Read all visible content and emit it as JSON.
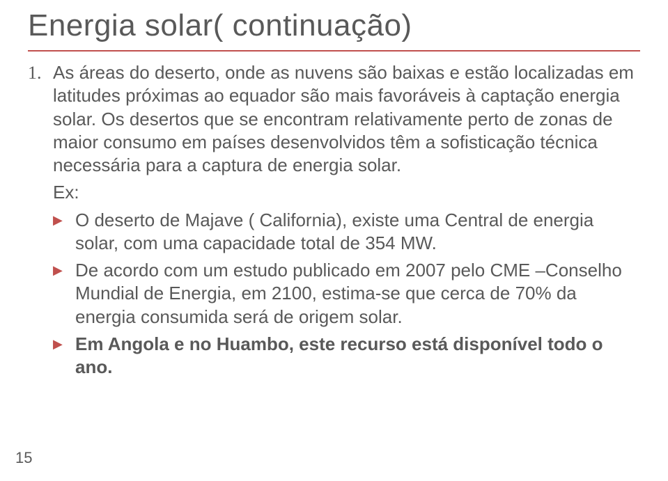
{
  "title": "Energia solar( continuação)",
  "list_number": "1.",
  "paragraph1": "As áreas do deserto, onde as nuvens são baixas e estão localizadas em latitudes próximas ao equador são mais favoráveis à captação energia solar. Os desertos que se encontram relativamente perto de zonas de maior consumo em países desenvolvidos têm a sofisticação técnica necessária para a captura de energia solar.",
  "ex_label": "Ex:",
  "bullet1": "O deserto de Majave ( California), existe uma Central de energia solar, com uma capacidade total de 354 MW.",
  "bullet2": "De acordo com um estudo publicado em 2007 pelo CME –Conselho Mundial de Energia, em 2100, estima-se que  cerca de 70% da energia consumida será de origem solar.",
  "bullet3": "Em Angola e no Huambo, este recurso está disponível todo o ano.",
  "page_number": "15",
  "colors": {
    "text": "#595959",
    "accent": "#c0504d",
    "background": "#ffffff"
  },
  "typography": {
    "title_fontsize": 44,
    "body_fontsize": 26,
    "pagenum_fontsize": 22
  }
}
